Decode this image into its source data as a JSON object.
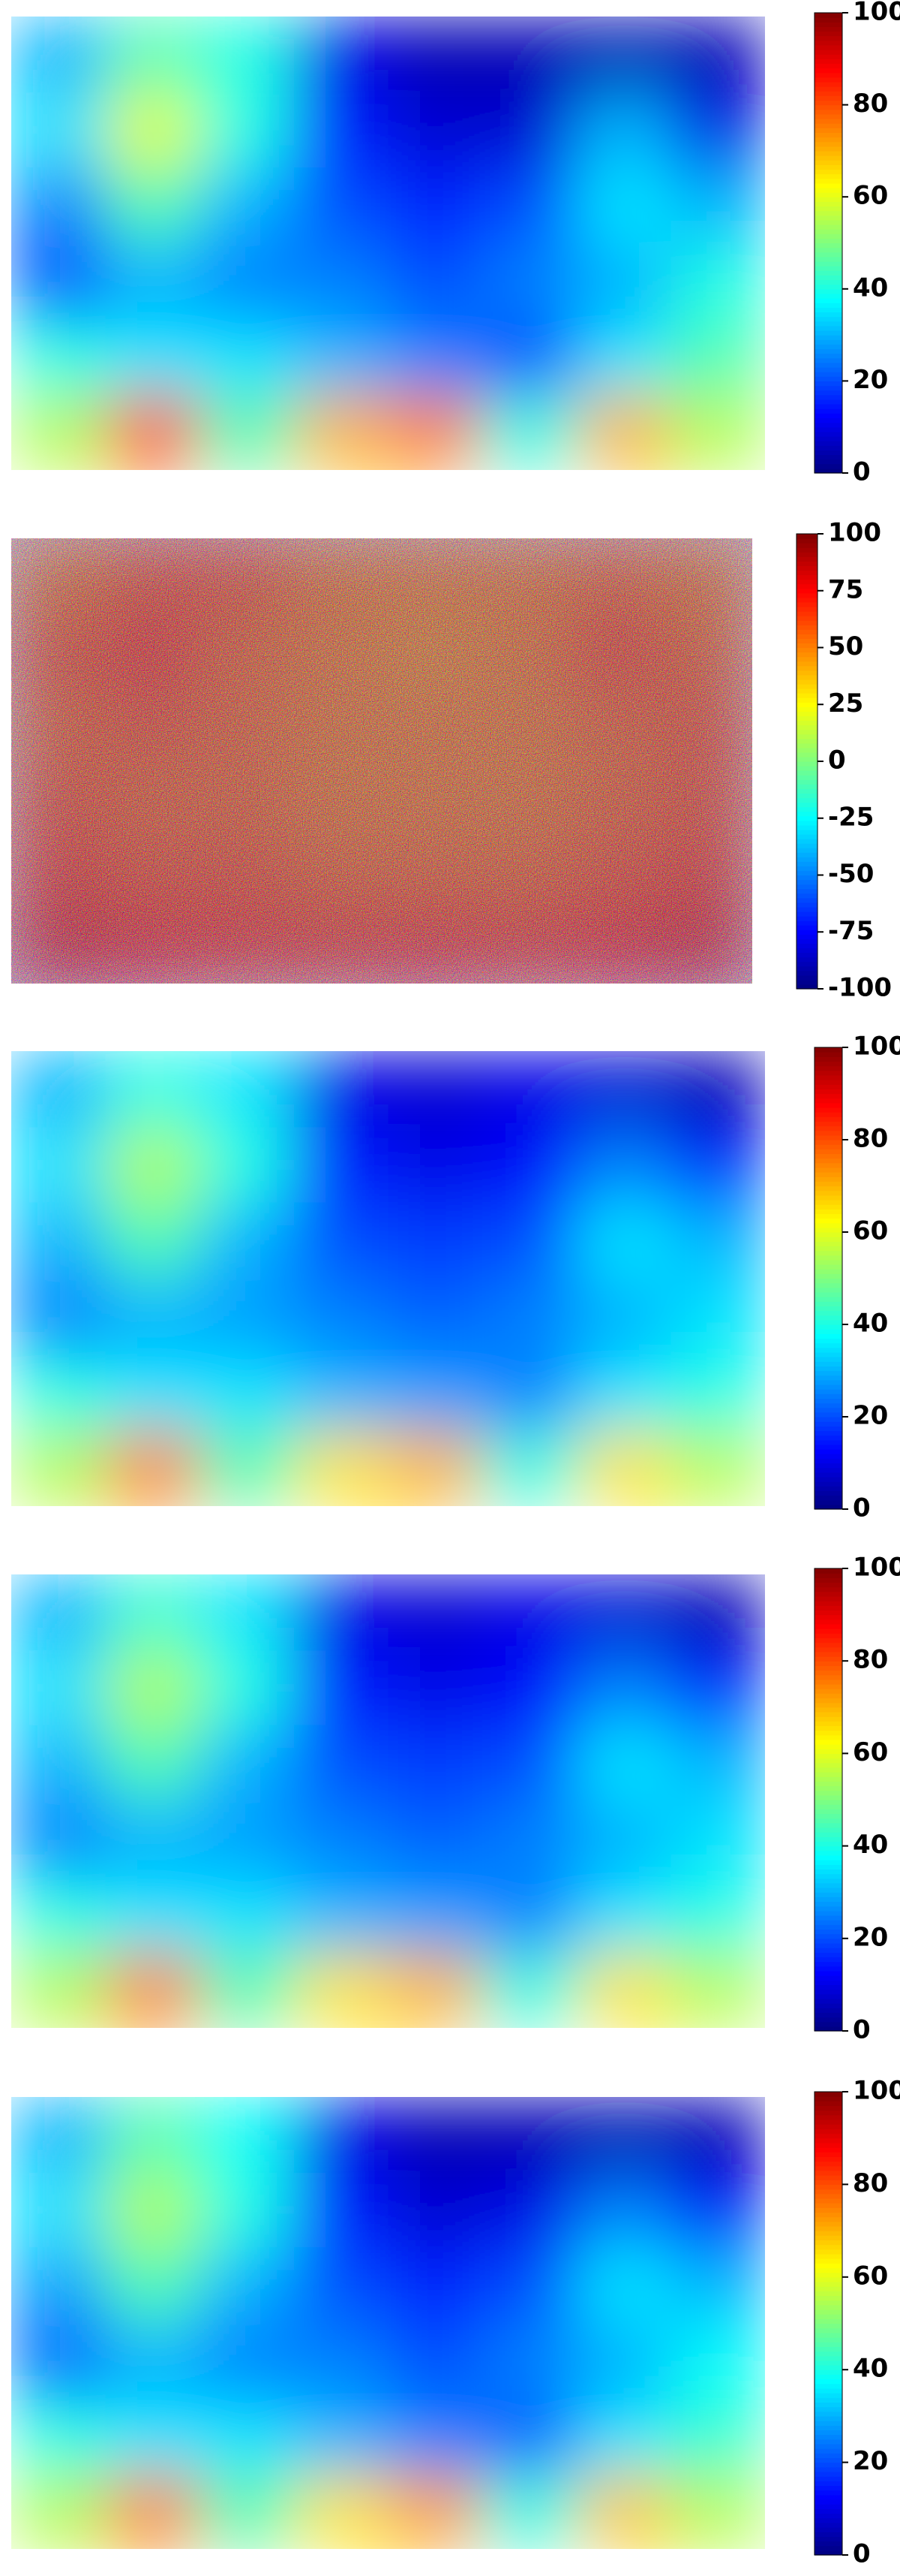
{
  "chart_data": [
    {
      "type": "heatmap",
      "clim": [
        0,
        100
      ],
      "cticks": [
        0,
        20,
        40,
        60,
        80,
        100
      ],
      "z": [
        [
          30,
          45,
          40,
          10,
          5,
          5,
          5,
          5
        ],
        [
          35,
          60,
          40,
          15,
          8,
          8,
          30,
          10
        ],
        [
          25,
          45,
          30,
          20,
          15,
          20,
          35,
          30
        ],
        [
          20,
          30,
          25,
          25,
          20,
          25,
          30,
          40
        ],
        [
          40,
          35,
          35,
          30,
          25,
          20,
          35,
          45
        ],
        [
          55,
          80,
          45,
          70,
          75,
          40,
          70,
          55
        ]
      ]
    },
    {
      "type": "heatmap",
      "clim": [
        -100,
        100
      ],
      "cticks": [
        -100,
        -75,
        -50,
        -25,
        0,
        25,
        50,
        75,
        100
      ],
      "z": [
        [
          50,
          60,
          60,
          50,
          50,
          50,
          55,
          50
        ],
        [
          60,
          70,
          55,
          50,
          45,
          50,
          65,
          55
        ],
        [
          55,
          60,
          55,
          50,
          50,
          50,
          55,
          60
        ],
        [
          60,
          55,
          55,
          50,
          50,
          50,
          55,
          60
        ],
        [
          65,
          60,
          60,
          55,
          55,
          55,
          60,
          65
        ],
        [
          80,
          75,
          70,
          70,
          75,
          70,
          75,
          80
        ]
      ]
    },
    {
      "type": "heatmap",
      "clim": [
        0,
        100
      ],
      "cticks": [
        0,
        20,
        40,
        60,
        80,
        100
      ],
      "z": [
        [
          30,
          40,
          35,
          10,
          8,
          10,
          8,
          5
        ],
        [
          35,
          55,
          40,
          15,
          10,
          12,
          25,
          15
        ],
        [
          30,
          45,
          30,
          20,
          18,
          20,
          35,
          30
        ],
        [
          25,
          30,
          28,
          25,
          22,
          25,
          30,
          35
        ],
        [
          40,
          35,
          35,
          30,
          28,
          25,
          35,
          40
        ],
        [
          55,
          75,
          45,
          65,
          70,
          40,
          65,
          55
        ]
      ]
    },
    {
      "type": "heatmap",
      "clim": [
        0,
        100
      ],
      "cticks": [
        0,
        20,
        40,
        60,
        80,
        100
      ],
      "z": [
        [
          30,
          42,
          35,
          10,
          8,
          10,
          8,
          5
        ],
        [
          35,
          55,
          40,
          15,
          10,
          12,
          25,
          15
        ],
        [
          30,
          45,
          30,
          20,
          18,
          20,
          35,
          30
        ],
        [
          25,
          30,
          28,
          25,
          22,
          25,
          30,
          35
        ],
        [
          40,
          35,
          35,
          30,
          28,
          25,
          35,
          40
        ],
        [
          55,
          75,
          45,
          65,
          70,
          40,
          65,
          55
        ]
      ]
    },
    {
      "type": "heatmap",
      "clim": [
        0,
        100
      ],
      "cticks": [
        0,
        20,
        40,
        60,
        80,
        100
      ],
      "z": [
        [
          30,
          45,
          38,
          10,
          5,
          5,
          5,
          5
        ],
        [
          35,
          55,
          40,
          15,
          8,
          10,
          25,
          12
        ],
        [
          28,
          45,
          30,
          20,
          15,
          20,
          35,
          30
        ],
        [
          22,
          30,
          25,
          25,
          20,
          25,
          30,
          38
        ],
        [
          40,
          35,
          35,
          30,
          25,
          22,
          35,
          42
        ],
        [
          55,
          75,
          45,
          65,
          72,
          40,
          68,
          55
        ]
      ]
    }
  ]
}
